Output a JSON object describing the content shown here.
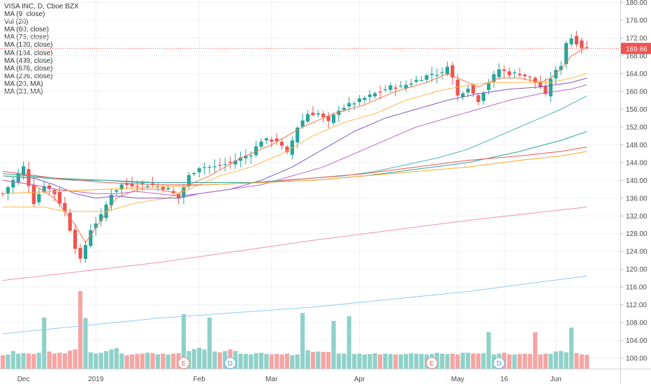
{
  "chart_data": {
    "type": "candlestick",
    "title": "VISA INC, D, Cboe BZX",
    "legend": [
      "VISA INC, D, Cboe BZX",
      "MA (9, close)",
      "Vol (20)",
      "MA (60, close)",
      "MA (75, close)",
      "MA (120, close)",
      "MA (164, close)",
      "MA (439, close)",
      "MA (676, close)",
      "MA (226, close)",
      "MA (20, MA)",
      "MA (33, MA)"
    ],
    "last_price": "169.66",
    "y_ticks": [
      "180.00",
      "176.00",
      "172.00",
      "168.00",
      "164.00",
      "160.00",
      "156.00",
      "152.00",
      "148.00",
      "144.00",
      "140.00",
      "136.00",
      "132.00",
      "128.00",
      "124.00",
      "120.00",
      "116.00",
      "112.00",
      "108.00",
      "104.00",
      "100.00"
    ],
    "ylim": [
      99,
      181
    ],
    "x_labels": [
      {
        "label": "Dec",
        "index": 4
      },
      {
        "label": "2019",
        "index": 18
      },
      {
        "label": "Feb",
        "index": 38
      },
      {
        "label": "Mar",
        "index": 52
      },
      {
        "label": "Apr",
        "index": 69
      },
      {
        "label": "May",
        "index": 88
      },
      {
        "label": "16",
        "index": 97
      },
      {
        "label": "Jun",
        "index": 107
      }
    ],
    "event_markers": [
      {
        "label": "E",
        "index": 35
      },
      {
        "label": "D",
        "index": 44
      },
      {
        "label": "E",
        "index": 83
      },
      {
        "label": "D",
        "index": 96
      }
    ],
    "ohlc_anchors": [
      [
        0,
        137
      ],
      [
        2,
        140
      ],
      [
        4,
        143
      ],
      [
        6,
        135
      ],
      [
        8,
        139
      ],
      [
        10,
        137
      ],
      [
        12,
        133
      ],
      [
        14,
        125
      ],
      [
        15,
        122
      ],
      [
        17,
        129
      ],
      [
        19,
        132
      ],
      [
        21,
        137
      ],
      [
        23,
        139
      ],
      [
        26,
        139
      ],
      [
        29,
        139
      ],
      [
        32,
        138
      ],
      [
        34,
        136
      ],
      [
        36,
        141
      ],
      [
        38,
        143
      ],
      [
        41,
        143
      ],
      [
        44,
        144
      ],
      [
        46,
        145
      ],
      [
        48,
        146
      ],
      [
        50,
        149
      ],
      [
        53,
        149
      ],
      [
        55,
        146
      ],
      [
        57,
        152
      ],
      [
        59,
        155
      ],
      [
        61,
        155
      ],
      [
        63,
        153
      ],
      [
        65,
        156
      ],
      [
        67,
        157
      ],
      [
        69,
        158
      ],
      [
        71,
        159
      ],
      [
        73,
        160
      ],
      [
        75,
        161
      ],
      [
        77,
        161
      ],
      [
        79,
        162
      ],
      [
        81,
        163
      ],
      [
        83,
        164
      ],
      [
        85,
        164
      ],
      [
        86,
        166
      ],
      [
        87,
        163
      ],
      [
        88,
        159
      ],
      [
        90,
        161
      ],
      [
        92,
        158
      ],
      [
        94,
        162
      ],
      [
        96,
        165
      ],
      [
        98,
        164
      ],
      [
        100,
        164
      ],
      [
        102,
        163
      ],
      [
        104,
        161
      ],
      [
        105,
        159
      ],
      [
        106,
        163
      ],
      [
        108,
        166
      ],
      [
        109,
        171
      ],
      [
        110,
        172
      ],
      [
        111,
        171
      ],
      [
        112,
        170
      ],
      [
        113,
        169.66
      ]
    ],
    "volume_bars": [
      3.2,
      3.4,
      4.2,
      3.6,
      3.7,
      3.6,
      3.5,
      3.8,
      3.9,
      4.1,
      3.6,
      3.8,
      3.7,
      4.3,
      4.6,
      4.8,
      4.5,
      3.9,
      3.6,
      3.8,
      4.2,
      4.6,
      4.9,
      3.6,
      3.2,
      3.4,
      3.5,
      3.6,
      3.8,
      3.7,
      3.4,
      3.6,
      3.4,
      3.6,
      3.7,
      4.6,
      4.2,
      4.7,
      5.0,
      4.6,
      4.3,
      4.1,
      3.9,
      4.2,
      4.6,
      4.2,
      3.6,
      3.5,
      3.4,
      3.7,
      3.8,
      3.5,
      3.4,
      3.5,
      3.4,
      3.6,
      3.2,
      3.4,
      4.7,
      4.4,
      4.0,
      4.1,
      4.0,
      4.0,
      3.7,
      3.6,
      3.6,
      3.4,
      3.5,
      3.6,
      3.4,
      3.5,
      3.7,
      3.4,
      3.6,
      3.5,
      3.4,
      3.4,
      3.5,
      3.7,
      3.6,
      3.5,
      3.4,
      3.5,
      3.8,
      3.6,
      3.5,
      3.6,
      3.4,
      3.8,
      3.8,
      3.6,
      3.6,
      3.7,
      3.5,
      3.4,
      3.6,
      3.8,
      3.4,
      3.4,
      3.5,
      3.6,
      3.5,
      3.2,
      3.4,
      3.6,
      3.5,
      4.1,
      4.2,
      3.9,
      3.9,
      3.7,
      3.4,
      3.3
    ],
    "volume_spikes": [
      [
        8,
        12.2
      ],
      [
        15,
        18.5
      ],
      [
        16,
        12.1
      ],
      [
        35,
        13.0
      ],
      [
        40,
        12.2
      ],
      [
        58,
        13.3
      ],
      [
        64,
        11.4
      ],
      [
        67,
        12.5
      ],
      [
        94,
        8.7
      ],
      [
        103,
        8.7
      ],
      [
        110,
        9.8
      ]
    ],
    "series": [
      {
        "name": "MA (9, close)",
        "color": "#ff7043",
        "values": [
          [
            0,
            140
          ],
          [
            6,
            139
          ],
          [
            10,
            136
          ],
          [
            14,
            130
          ],
          [
            16,
            126
          ],
          [
            19,
            131
          ],
          [
            22,
            136
          ],
          [
            26,
            138
          ],
          [
            30,
            138
          ],
          [
            34,
            137
          ],
          [
            36,
            139
          ],
          [
            40,
            141
          ],
          [
            46,
            145
          ],
          [
            52,
            148
          ],
          [
            58,
            152
          ],
          [
            64,
            155
          ],
          [
            70,
            157
          ],
          [
            76,
            160
          ],
          [
            82,
            162
          ],
          [
            86,
            164
          ],
          [
            88,
            163
          ],
          [
            92,
            161
          ],
          [
            96,
            163
          ],
          [
            100,
            163
          ],
          [
            104,
            162
          ],
          [
            106,
            163
          ],
          [
            108,
            165
          ],
          [
            110,
            168
          ],
          [
            113,
            170
          ]
        ]
      },
      {
        "name": "MA (20, MA)",
        "color": "#ffb74d",
        "values": [
          [
            0,
            134
          ],
          [
            8,
            134
          ],
          [
            12,
            133
          ],
          [
            16,
            133
          ],
          [
            20,
            133
          ],
          [
            26,
            135
          ],
          [
            32,
            136
          ],
          [
            36,
            138
          ],
          [
            42,
            141
          ],
          [
            48,
            143
          ],
          [
            54,
            146
          ],
          [
            60,
            150
          ],
          [
            66,
            153
          ],
          [
            72,
            155
          ],
          [
            78,
            158
          ],
          [
            84,
            160
          ],
          [
            88,
            161
          ],
          [
            94,
            162
          ],
          [
            100,
            162
          ],
          [
            106,
            162
          ],
          [
            110,
            163
          ],
          [
            113,
            164
          ]
        ]
      },
      {
        "name": "MA (60, close)",
        "color": "#7e57c2",
        "values": [
          [
            0,
            141
          ],
          [
            6,
            140.5
          ],
          [
            10,
            139
          ],
          [
            14,
            137
          ],
          [
            18,
            136
          ],
          [
            22,
            136.5
          ],
          [
            26,
            136
          ],
          [
            30,
            136
          ],
          [
            34,
            136
          ],
          [
            38,
            137
          ],
          [
            44,
            138
          ],
          [
            50,
            140
          ],
          [
            56,
            143
          ],
          [
            62,
            147
          ],
          [
            68,
            151
          ],
          [
            74,
            154
          ],
          [
            80,
            156
          ],
          [
            86,
            158
          ],
          [
            92,
            159.5
          ],
          [
            98,
            160.5
          ],
          [
            104,
            161
          ],
          [
            110,
            162
          ],
          [
            113,
            163
          ]
        ]
      },
      {
        "name": "MA (33, MA)",
        "color": "#ba68c8",
        "values": [
          [
            0,
            140
          ],
          [
            6,
            139
          ],
          [
            10,
            138
          ],
          [
            14,
            137.5
          ],
          [
            18,
            137
          ],
          [
            22,
            137
          ],
          [
            26,
            137.5
          ],
          [
            30,
            137
          ],
          [
            34,
            136.5
          ],
          [
            38,
            137
          ],
          [
            44,
            138
          ],
          [
            50,
            139
          ],
          [
            56,
            141
          ],
          [
            62,
            143
          ],
          [
            68,
            146
          ],
          [
            74,
            149
          ],
          [
            80,
            152
          ],
          [
            86,
            154
          ],
          [
            92,
            156
          ],
          [
            98,
            158
          ],
          [
            104,
            159.5
          ],
          [
            110,
            160.5
          ],
          [
            113,
            161.5
          ]
        ]
      },
      {
        "name": "MA (75, close)",
        "color": "#4db6ac",
        "values": [
          [
            0,
            141
          ],
          [
            8,
            140.5
          ],
          [
            14,
            140
          ],
          [
            20,
            140
          ],
          [
            26,
            139.5
          ],
          [
            30,
            139.5
          ],
          [
            36,
            139.5
          ],
          [
            42,
            139.5
          ],
          [
            48,
            139.5
          ],
          [
            54,
            140
          ],
          [
            60,
            140.5
          ],
          [
            66,
            141
          ],
          [
            72,
            142
          ],
          [
            78,
            143.5
          ],
          [
            84,
            145
          ],
          [
            90,
            147
          ],
          [
            96,
            150
          ],
          [
            102,
            153
          ],
          [
            108,
            156
          ],
          [
            113,
            159
          ]
        ]
      },
      {
        "name": "MA (120, close)",
        "color": "#26a69a",
        "values": [
          [
            0,
            141.5
          ],
          [
            10,
            140.5
          ],
          [
            20,
            140
          ],
          [
            30,
            139.5
          ],
          [
            40,
            139.5
          ],
          [
            50,
            139.5
          ],
          [
            60,
            140
          ],
          [
            70,
            141
          ],
          [
            80,
            142.5
          ],
          [
            90,
            144
          ],
          [
            100,
            146.5
          ],
          [
            108,
            149
          ],
          [
            113,
            151
          ]
        ]
      },
      {
        "name": "MA (164, close)",
        "color": "#ef5350",
        "values": [
          [
            0,
            142
          ],
          [
            10,
            140.5
          ],
          [
            20,
            139.5
          ],
          [
            30,
            139
          ],
          [
            40,
            139
          ],
          [
            50,
            139.5
          ],
          [
            60,
            140.5
          ],
          [
            70,
            141.5
          ],
          [
            80,
            143
          ],
          [
            90,
            144.5
          ],
          [
            100,
            145.5
          ],
          [
            108,
            146.5
          ],
          [
            113,
            147.5
          ]
        ]
      },
      {
        "name": "MA (226, close)",
        "color": "#ffa726",
        "values": [
          [
            0,
            137
          ],
          [
            10,
            137.5
          ],
          [
            20,
            138
          ],
          [
            30,
            138.5
          ],
          [
            40,
            139
          ],
          [
            50,
            139.5
          ],
          [
            60,
            140
          ],
          [
            70,
            141
          ],
          [
            80,
            142
          ],
          [
            90,
            143
          ],
          [
            100,
            144.5
          ],
          [
            108,
            145.5
          ],
          [
            113,
            146.5
          ]
        ]
      },
      {
        "name": "MA (439, close)",
        "color": "#f48fb1",
        "values": [
          [
            0,
            117.5
          ],
          [
            30,
            121.5
          ],
          [
            60,
            126.5
          ],
          [
            90,
            131
          ],
          [
            113,
            134
          ]
        ]
      },
      {
        "name": "MA (676, close)",
        "color": "#90caf9",
        "values": [
          [
            0,
            105.5
          ],
          [
            30,
            109
          ],
          [
            60,
            111.5
          ],
          [
            90,
            115
          ],
          [
            113,
            118.5
          ]
        ]
      }
    ]
  }
}
